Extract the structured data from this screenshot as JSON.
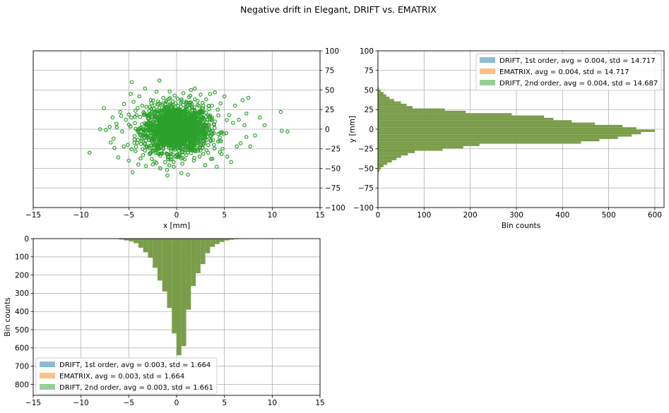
{
  "figure_title": "Negative drift in Elegant, DRIFT vs. EMATRIX",
  "colors": {
    "drift1": "#1f77b4",
    "ematrix": "#ff7f0e",
    "drift2": "#2ca02c",
    "overlap": "#7a9d4a",
    "grid": "#b0b0b0"
  },
  "chart_data": [
    {
      "type": "scatter",
      "panel": "top-left",
      "xlabel": "x [mm]",
      "ylabel": "",
      "xlim": [
        -15,
        15
      ],
      "ylim": [
        -100,
        100
      ],
      "x_ticks": [
        -15,
        -10,
        -5,
        0,
        5,
        10,
        15
      ],
      "y_ticks": [
        100,
        75,
        50,
        25,
        0,
        -25,
        -50,
        -75,
        -100
      ],
      "y_tick_side": "right",
      "grid": true,
      "marker": "open circle",
      "series": [
        {
          "x_std": 1.664,
          "y_std": 14.687,
          "points": [
            [
              -9.1,
              -30
            ],
            [
              -8.0,
              0
            ],
            [
              -7.4,
              -1
            ],
            [
              -7.6,
              27
            ],
            [
              -7.0,
              3
            ],
            [
              -6.9,
              -17
            ],
            [
              -6.6,
              -12
            ],
            [
              -6.7,
              15
            ],
            [
              -6.5,
              -24
            ],
            [
              -6.3,
              7
            ],
            [
              -6.1,
              -36
            ],
            [
              -5.9,
              22
            ],
            [
              -5.7,
              -3
            ],
            [
              -5.5,
              32
            ],
            [
              -5.3,
              12
            ],
            [
              -5.1,
              -20
            ],
            [
              -5.0,
              -40
            ],
            [
              -4.8,
              45
            ],
            [
              -4.7,
              60
            ],
            [
              -4.6,
              -55
            ],
            [
              -4.5,
              35
            ],
            [
              -4.3,
              -28
            ],
            [
              -4.2,
              18
            ],
            [
              -4.0,
              -45
            ],
            [
              -3.9,
              42
            ],
            [
              -3.8,
              -8
            ],
            [
              -3.6,
              30
            ],
            [
              -3.5,
              -33
            ],
            [
              -3.3,
              52
            ],
            [
              -3.2,
              -47
            ],
            [
              -3.0,
              14
            ],
            [
              -2.9,
              -22
            ],
            [
              -2.7,
              37
            ],
            [
              -2.6,
              -38
            ],
            [
              -2.4,
              26
            ],
            [
              -2.3,
              -15
            ],
            [
              -2.1,
              48
            ],
            [
              -2.0,
              -30
            ],
            [
              -1.8,
              62
            ],
            [
              -1.7,
              -50
            ],
            [
              -1.5,
              24
            ],
            [
              -1.4,
              40
            ],
            [
              -1.2,
              -42
            ],
            [
              -1.1,
              35
            ],
            [
              -0.9,
              -36
            ],
            [
              -0.8,
              12
            ],
            [
              -0.6,
              -25
            ],
            [
              -0.5,
              30
            ],
            [
              -0.3,
              -48
            ],
            [
              -0.2,
              43
            ],
            [
              0.0,
              -20
            ],
            [
              0.1,
              39
            ],
            [
              0.3,
              -31
            ],
            [
              0.4,
              20
            ],
            [
              0.6,
              -44
            ],
            [
              0.7,
              46
            ],
            [
              0.9,
              -12
            ],
            [
              1.0,
              33
            ],
            [
              1.2,
              -58
            ],
            [
              1.3,
              41
            ],
            [
              1.5,
              -27
            ],
            [
              1.6,
              28
            ],
            [
              1.8,
              -40
            ],
            [
              1.9,
              52
            ],
            [
              2.1,
              -18
            ],
            [
              2.2,
              36
            ],
            [
              2.4,
              -35
            ],
            [
              2.5,
              44
            ],
            [
              2.7,
              -24
            ],
            [
              2.8,
              22
            ],
            [
              3.0,
              -46
            ],
            [
              3.1,
              38
            ],
            [
              3.3,
              -30
            ],
            [
              3.4,
              16
            ],
            [
              3.6,
              -38
            ],
            [
              3.7,
              30
            ],
            [
              3.9,
              -20
            ],
            [
              4.0,
              47
            ],
            [
              4.2,
              -48
            ],
            [
              4.3,
              25
            ],
            [
              4.5,
              -15
            ],
            [
              4.6,
              33
            ],
            [
              4.8,
              -25
            ],
            [
              5.0,
              42
            ],
            [
              5.2,
              -5
            ],
            [
              5.3,
              -35
            ],
            [
              5.5,
              18
            ],
            [
              5.7,
              -42
            ],
            [
              5.9,
              8
            ],
            [
              6.1,
              30
            ],
            [
              6.3,
              -22
            ],
            [
              6.5,
              12
            ],
            [
              6.7,
              -18
            ],
            [
              6.9,
              37
            ],
            [
              7.1,
              5
            ],
            [
              7.3,
              -10
            ],
            [
              7.5,
              40
            ],
            [
              7.7,
              -22
            ],
            [
              7.3,
              20
            ],
            [
              8.2,
              -8
            ],
            [
              8.7,
              15
            ],
            [
              9.2,
              5
            ],
            [
              10.9,
              22
            ],
            [
              11.0,
              -2
            ],
            [
              11.6,
              -3
            ],
            [
              0.5,
              -56
            ],
            [
              -1.0,
              -52
            ],
            [
              1.5,
              50
            ],
            [
              -2.5,
              -45
            ],
            [
              3.5,
              45
            ],
            [
              2.0,
              15
            ],
            [
              -3.0,
              -10
            ]
          ]
        }
      ]
    },
    {
      "type": "bar",
      "orientation": "horizontal",
      "panel": "top-right",
      "xlabel": "Bin counts",
      "ylabel": "y [mm]",
      "xlim": [
        0,
        620
      ],
      "ylim": [
        -100,
        100
      ],
      "x_ticks": [
        0,
        100,
        200,
        300,
        400,
        500,
        600
      ],
      "y_ticks": [
        100,
        75,
        50,
        25,
        0,
        -25,
        -50,
        -75,
        -100
      ],
      "grid": true,
      "legend_position": "top-right",
      "legend": [
        "DRIFT, 1st order, avg = 0.004, std = 14.717",
        "EMATRIX, avg = 0.004, std = 14.717",
        "DRIFT, 2nd order, avg = 0.004, std = 14.687"
      ],
      "bins": [
        [
          52,
          2
        ],
        [
          49,
          6
        ],
        [
          46,
          12
        ],
        [
          43,
          18
        ],
        [
          40,
          25
        ],
        [
          37,
          35
        ],
        [
          34,
          50
        ],
        [
          31,
          62
        ],
        [
          28,
          75
        ],
        [
          25,
          145
        ],
        [
          22,
          190
        ],
        [
          19,
          290
        ],
        [
          16,
          360
        ],
        [
          13,
          380
        ],
        [
          10,
          420
        ],
        [
          7,
          470
        ],
        [
          4,
          530
        ],
        [
          1,
          560
        ],
        [
          -2,
          600
        ],
        [
          -5,
          570
        ],
        [
          -8,
          550
        ],
        [
          -11,
          520
        ],
        [
          -14,
          480
        ],
        [
          -17,
          440
        ],
        [
          -20,
          220
        ],
        [
          -23,
          185
        ],
        [
          -26,
          140
        ],
        [
          -29,
          80
        ],
        [
          -32,
          65
        ],
        [
          -35,
          50
        ],
        [
          -38,
          40
        ],
        [
          -41,
          30
        ],
        [
          -44,
          20
        ],
        [
          -47,
          12
        ],
        [
          -50,
          6
        ],
        [
          -53,
          3
        ],
        [
          -56,
          1
        ]
      ]
    },
    {
      "type": "bar",
      "orientation": "vertical-inverted",
      "panel": "bottom-left",
      "xlabel": "",
      "ylabel": "Bin counts",
      "xlim": [
        -15,
        15
      ],
      "ylim": [
        0,
        860
      ],
      "x_ticks": [
        -15,
        -10,
        -5,
        0,
        5,
        10,
        15
      ],
      "y_ticks": [
        0,
        100,
        200,
        300,
        400,
        500,
        600,
        700,
        800
      ],
      "grid": true,
      "legend_position": "bottom-left",
      "legend": [
        "DRIFT, 1st order, avg = 0.003, std = 1.664",
        "EMATRIX, avg = 0.003, std = 1.664",
        "DRIFT, 2nd order, avg = 0.003, std = 1.661"
      ],
      "bins": [
        [
          -6.25,
          2
        ],
        [
          -5.75,
          5
        ],
        [
          -5.25,
          10
        ],
        [
          -4.75,
          15
        ],
        [
          -4.25,
          25
        ],
        [
          -3.75,
          50
        ],
        [
          -3.25,
          75
        ],
        [
          -2.75,
          105
        ],
        [
          -2.25,
          160
        ],
        [
          -1.75,
          230
        ],
        [
          -1.25,
          290
        ],
        [
          -0.75,
          380
        ],
        [
          -0.25,
          520
        ],
        [
          0.25,
          640
        ],
        [
          0.75,
          590
        ],
        [
          1.25,
          390
        ],
        [
          1.75,
          260
        ],
        [
          2.25,
          190
        ],
        [
          2.75,
          140
        ],
        [
          3.25,
          80
        ],
        [
          3.75,
          45
        ],
        [
          4.25,
          30
        ],
        [
          4.75,
          18
        ],
        [
          5.25,
          10
        ],
        [
          5.75,
          6
        ],
        [
          6.25,
          3
        ],
        [
          7.25,
          2
        ]
      ]
    }
  ]
}
